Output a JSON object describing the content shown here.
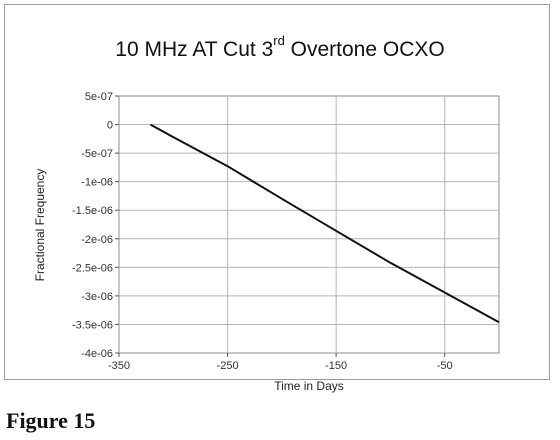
{
  "chart_data": {
    "type": "line",
    "title": "10 MHz AT Cut 3rd Overtone OCXO",
    "title_parts": {
      "before": "10 MHz AT Cut 3",
      "superscript": "rd",
      "after": " Overtone OCXO"
    },
    "xlabel": "Time in Days",
    "ylabel": "Fractional Frequency",
    "xlim": [
      -350,
      0
    ],
    "ylim": [
      -4e-06,
      5e-07
    ],
    "x_ticks": [
      -350,
      -250,
      -150,
      -50
    ],
    "x_tick_labels": [
      "-350",
      "-250",
      "-150",
      "-50"
    ],
    "y_ticks": [
      5e-07,
      0,
      -5e-07,
      -1e-06,
      -1.5e-06,
      -2e-06,
      -2.5e-06,
      -3e-06,
      -3.5e-06,
      -4e-06
    ],
    "y_tick_labels": [
      "5e-07",
      "0",
      "-5e-07",
      "-1e-06",
      "-1.5e-06",
      "-2e-06",
      "-2.5e-06",
      "-3e-06",
      "-3.5e-06",
      "-4e-06"
    ],
    "grid": true,
    "series": [
      {
        "x": [
          -321,
          -300,
          -250,
          -200,
          -150,
          -100,
          -50,
          0
        ],
        "y": [
          0,
          -2.2e-07,
          -7.3e-07,
          -1.3e-06,
          -1.86e-06,
          -2.42e-06,
          -2.94e-06,
          -3.46e-06
        ],
        "color": "#111111"
      }
    ]
  },
  "caption": "Figure 15"
}
